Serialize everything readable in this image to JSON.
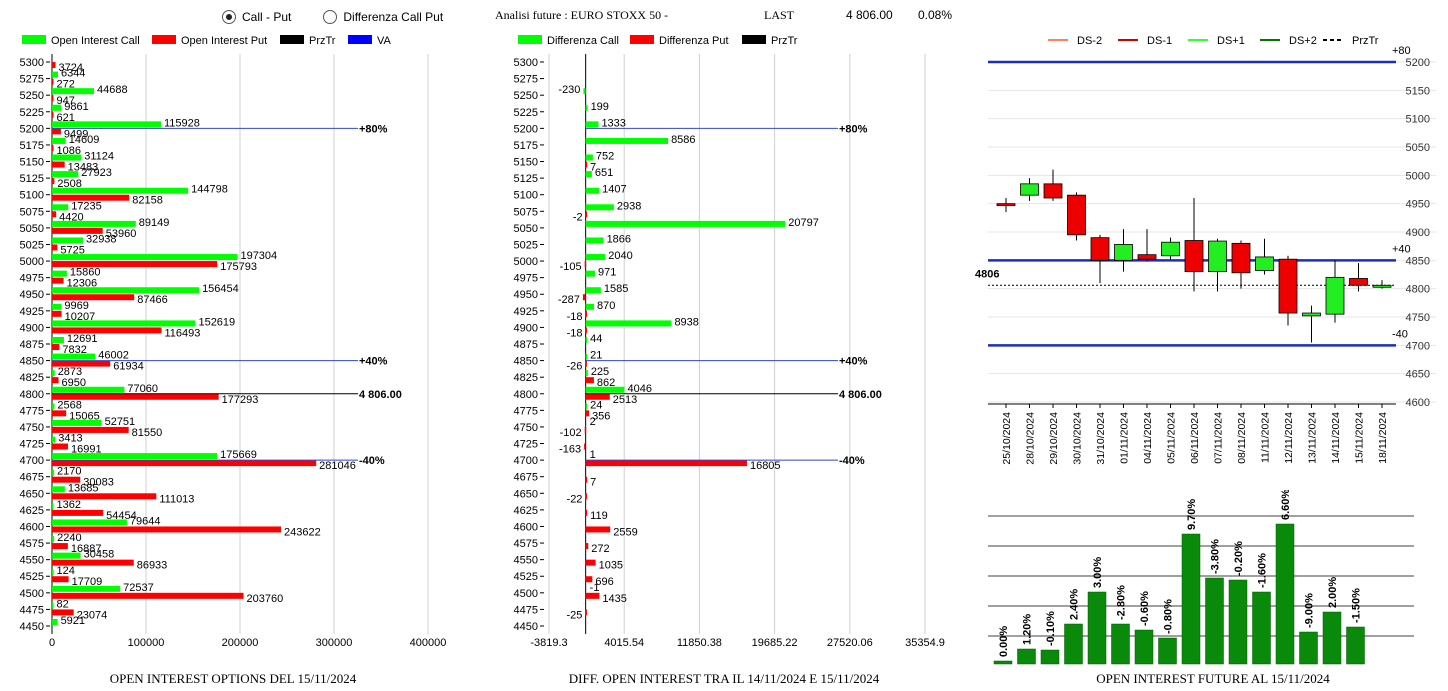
{
  "controls": {
    "mode_options": [
      {
        "label": "Call - Put",
        "selected": true
      },
      {
        "label": "Differenza Call Put",
        "selected": false
      }
    ]
  },
  "header": {
    "title": "Analisi future : EURO STOXX 50 -",
    "last_label": "LAST",
    "last_value": "4 806.00",
    "change": "0.08%"
  },
  "colors": {
    "green": "#00ff00",
    "red": "#ff0000",
    "black": "#000000",
    "blue": "#0000ff",
    "dark_green": "#008000"
  },
  "chart_data": [
    {
      "type": "bar",
      "orientation": "horizontal",
      "title": "OPEN INTEREST OPTIONS DEL 15/11/2024",
      "legend": [
        "Open Interest Call",
        "Open Interest Put",
        "PrzTr",
        "VA"
      ],
      "strikes": [
        5300,
        5275,
        5250,
        5225,
        5200,
        5175,
        5150,
        5125,
        5100,
        5075,
        5050,
        5025,
        5000,
        4975,
        4950,
        4925,
        4900,
        4875,
        4850,
        4825,
        4800,
        4775,
        4750,
        4725,
        4700,
        4675,
        4650,
        4625,
        4600,
        4575,
        4550,
        4525,
        4500,
        4475,
        4450
      ],
      "series": [
        {
          "name": "Open Interest Call",
          "values": [
            null,
            6344,
            44688,
            9861,
            115928,
            14609,
            31124,
            27923,
            144798,
            17235,
            89149,
            32938,
            197304,
            15860,
            156454,
            9969,
            152619,
            12691,
            46002,
            2873,
            77060,
            2568,
            52751,
            3413,
            175669,
            2170,
            13685,
            1362,
            79644,
            2240,
            30458,
            124,
            72537,
            82,
            5921
          ]
        },
        {
          "name": "Open Interest Put",
          "values": [
            3724,
            272,
            947,
            621,
            9499,
            1086,
            13483,
            2508,
            82158,
            4420,
            53960,
            5725,
            175793,
            12306,
            87466,
            10207,
            116493,
            7832,
            61934,
            6950,
            177293,
            15065,
            81550,
            16991,
            281046,
            30083,
            111013,
            54454,
            243622,
            16887,
            86933,
            17709,
            203760,
            23074,
            null
          ]
        }
      ],
      "xlim": [
        0,
        400000
      ],
      "xticks": [
        "0",
        "100000",
        "200000",
        "300000",
        "400000"
      ],
      "annotations": [
        {
          "strike": 5200,
          "label": "+80%"
        },
        {
          "strike": 4850,
          "label": "+40%"
        },
        {
          "strike": 4800,
          "label": "4 806.00"
        },
        {
          "strike": 4700,
          "label": "-40%"
        }
      ]
    },
    {
      "type": "bar",
      "orientation": "horizontal",
      "title": "DIFF. OPEN INTEREST TRA IL 14/11/2024 E 15/11/2024",
      "legend": [
        "Differenza Call",
        "Differenza Put",
        "PrzTr"
      ],
      "strikes": [
        5300,
        5275,
        5250,
        5225,
        5200,
        5175,
        5150,
        5125,
        5100,
        5075,
        5050,
        5025,
        5000,
        4975,
        4950,
        4925,
        4900,
        4875,
        4850,
        4825,
        4800,
        4775,
        4750,
        4725,
        4700,
        4675,
        4650,
        4625,
        4600,
        4575,
        4550,
        4525,
        4500,
        4475,
        4450
      ],
      "series": [
        {
          "name": "Differenza Call",
          "values": [
            null,
            null,
            -230,
            199,
            1333,
            8586,
            752,
            651,
            1407,
            2938,
            20797,
            1866,
            2040,
            971,
            1585,
            870,
            8938,
            44,
            21,
            225,
            4046,
            24,
            null,
            null,
            null,
            null,
            null,
            null,
            null,
            null,
            null,
            null,
            null,
            null,
            null
          ]
        },
        {
          "name": "Differenza Put",
          "values": [
            null,
            null,
            null,
            null,
            null,
            null,
            7,
            null,
            null,
            -2,
            null,
            null,
            -105,
            null,
            -287,
            -18,
            -18,
            null,
            -26,
            862,
            2513,
            356,
            -102,
            -163,
            16805,
            7,
            -22,
            119,
            2559,
            272,
            1035,
            696,
            1435,
            -25,
            null
          ]
        }
      ],
      "extra_labels": [
        {
          "strike": 4500,
          "label": "-1",
          "series": "Differenza Call"
        },
        {
          "strike": 4750,
          "label": "2",
          "series": "Differenza Call"
        },
        {
          "strike": 4700,
          "label": "1",
          "series": "Differenza Call"
        }
      ],
      "xlim": [
        -3819.3,
        35354.9
      ],
      "xticks": [
        "-3819.3",
        "4015.54",
        "11850.38",
        "19685.22",
        "27520.06",
        "35354.9"
      ],
      "annotations": [
        {
          "strike": 5200,
          "label": "+80%"
        },
        {
          "strike": 4850,
          "label": "+40%"
        },
        {
          "strike": 4800,
          "label": "4 806.00"
        },
        {
          "strike": 4700,
          "label": "-40%"
        }
      ]
    },
    {
      "type": "candlestick",
      "legend": [
        "DS-2",
        "DS-1",
        "DS+1",
        "DS+2",
        "PrzTr"
      ],
      "dates": [
        "25/10/2024",
        "28/10/2024",
        "29/10/2024",
        "30/10/2024",
        "31/10/2024",
        "01/11/2024",
        "04/11/2024",
        "05/11/2024",
        "06/11/2024",
        "07/11/2024",
        "08/11/2024",
        "11/11/2024",
        "12/11/2024",
        "13/11/2024",
        "14/11/2024",
        "15/11/2024",
        "18/11/2024"
      ],
      "candles": [
        {
          "open": 4950,
          "close": 4948,
          "high": 4960,
          "low": 4935
        },
        {
          "open": 4965,
          "close": 4985,
          "high": 4995,
          "low": 4955
        },
        {
          "open": 4985,
          "close": 4960,
          "high": 5010,
          "low": 4955
        },
        {
          "open": 4965,
          "close": 4895,
          "high": 4970,
          "low": 4885
        },
        {
          "open": 4890,
          "close": 4850,
          "high": 4895,
          "low": 4810
        },
        {
          "open": 4850,
          "close": 4878,
          "high": 4905,
          "low": 4830
        },
        {
          "open": 4860,
          "close": 4852,
          "high": 4905,
          "low": 4848
        },
        {
          "open": 4858,
          "close": 4882,
          "high": 4890,
          "low": 4852
        },
        {
          "open": 4885,
          "close": 4830,
          "high": 4960,
          "low": 4795
        },
        {
          "open": 4830,
          "close": 4884,
          "high": 4888,
          "low": 4795
        },
        {
          "open": 4880,
          "close": 4828,
          "high": 4885,
          "low": 4800
        },
        {
          "open": 4832,
          "close": 4856,
          "high": 4888,
          "low": 4825
        },
        {
          "open": 4852,
          "close": 4757,
          "high": 4858,
          "low": 4735
        },
        {
          "open": 4752,
          "close": 4757,
          "high": 4770,
          "low": 4705
        },
        {
          "open": 4755,
          "close": 4820,
          "high": 4850,
          "low": 4740
        },
        {
          "open": 4818,
          "close": 4806,
          "high": 4845,
          "low": 4795
        },
        {
          "open": 4806,
          "close": 4806,
          "high": 4815,
          "low": 4800
        }
      ],
      "ylim": [
        4600,
        5200
      ],
      "yticks": [
        5200,
        5150,
        5100,
        5050,
        5000,
        4950,
        4900,
        4850,
        4800,
        4750,
        4700,
        4650,
        4600
      ],
      "levels": [
        {
          "value": 5200,
          "label": "+80"
        },
        {
          "value": 4850,
          "label": "+40"
        },
        {
          "value": 4806,
          "label": "4806"
        },
        {
          "value": 4700,
          "label": "-40"
        }
      ]
    },
    {
      "type": "bar",
      "title": "OPEN INTEREST FUTURE AL 15/11/2024",
      "labels": [
        "0.00%",
        "1.20%",
        "-0.10%",
        "2.40%",
        "3.00%",
        "-2.80%",
        "-0.60%",
        "-0.80%",
        "9.70%",
        "-3.80%",
        "-0.20%",
        "-1.60%",
        "6.60%",
        "-9.00%",
        "2.00%",
        "-1.50%"
      ],
      "values": [
        3,
        15,
        14,
        40,
        72,
        40,
        34,
        26,
        130,
        86,
        84,
        72,
        140,
        32,
        52,
        37
      ]
    }
  ]
}
